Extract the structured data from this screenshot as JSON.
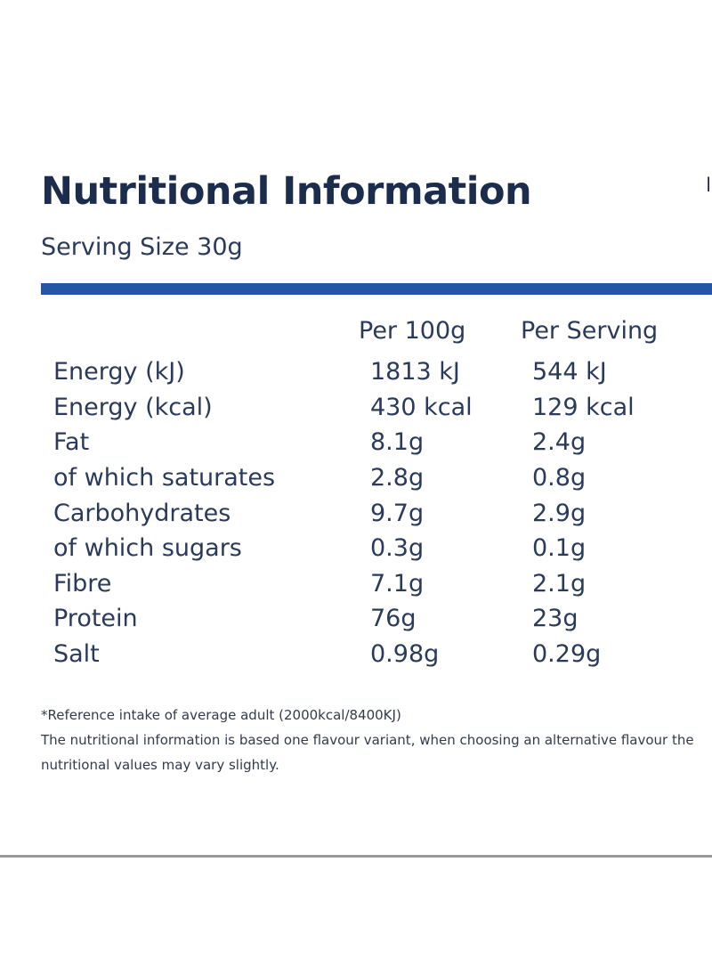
{
  "title": "Nutritional Information",
  "serving_size": "Serving Size 30g",
  "accent_color": "#2456a4",
  "columns": {
    "per_100g": "Per 100g",
    "per_serving": "Per Serving"
  },
  "rows": [
    {
      "name": "Energy (kJ)",
      "per_100g": "1813 kJ",
      "per_serving": "544 kJ"
    },
    {
      "name": "Energy (kcal)",
      "per_100g": "430 kcal",
      "per_serving": "129 kcal"
    },
    {
      "name": "Fat",
      "per_100g": "8.1g",
      "per_serving": "2.4g"
    },
    {
      "name": "of which saturates",
      "per_100g": "2.8g",
      "per_serving": "0.8g"
    },
    {
      "name": "Carbohydrates",
      "per_100g": "9.7g",
      "per_serving": "2.9g"
    },
    {
      "name": "of which sugars",
      "per_100g": "0.3g",
      "per_serving": "0.1g"
    },
    {
      "name": "Fibre",
      "per_100g": "7.1g",
      "per_serving": "2.1g"
    },
    {
      "name": "Protein",
      "per_100g": "76g",
      "per_serving": "23g"
    },
    {
      "name": "Salt",
      "per_100g": "0.98g",
      "per_serving": "0.29g"
    }
  ],
  "footnotes": [
    "*Reference intake of average adult (2000kcal/8400KJ)",
    "The nutritional information is based one flavour variant, when choosing an alternative flavour the",
    "nutritional values may vary slightly."
  ]
}
